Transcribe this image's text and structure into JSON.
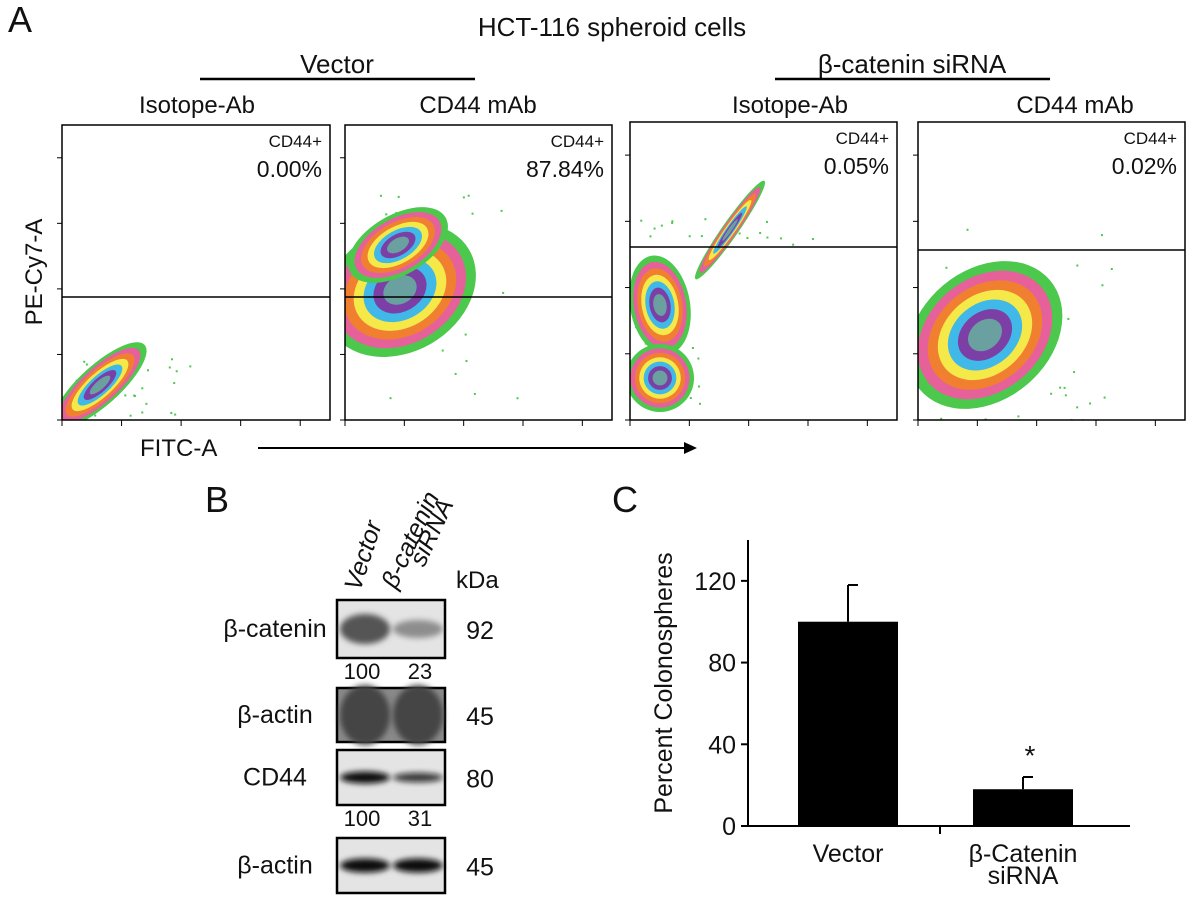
{
  "panel_a": {
    "label": "A",
    "title": "HCT-116 spheroid cells",
    "groups": [
      "Vector",
      "β-catenin siRNA"
    ],
    "plots": [
      {
        "label": "Isotope-Ab",
        "gate_label": "CD44+",
        "percent": "0.00%"
      },
      {
        "label": "CD44 mAb",
        "gate_label": "CD44+",
        "percent": "87.84%"
      },
      {
        "label": "Isotope-Ab",
        "gate_label": "CD44+",
        "percent": "0.05%"
      },
      {
        "label": "CD44 mAb",
        "gate_label": "CD44+",
        "percent": "0.02%"
      }
    ],
    "y_axis_label": "PE-Cy7-A",
    "x_axis_label": "FITC-A"
  },
  "panel_b": {
    "label": "B",
    "lanes": [
      [
        "Vector"
      ],
      [
        "β-catenin",
        "siRNA"
      ]
    ],
    "unit": "kDa",
    "rows": [
      {
        "protein": "β-catenin",
        "kda": 92,
        "quant": [
          100,
          23
        ]
      },
      {
        "protein": "β-actin",
        "kda": 45
      },
      {
        "protein": "CD44",
        "kda": 80,
        "quant": [
          100,
          31
        ]
      },
      {
        "protein": "β-actin",
        "kda": 45
      }
    ]
  },
  "chart_data": {
    "type": "bar",
    "label": "C",
    "ylabel": "Percent Colonospheres",
    "categories": [
      "Vector",
      "β-Catenin siRNA"
    ],
    "values": [
      100,
      18
    ],
    "errors": [
      18,
      6
    ],
    "color": "#000000",
    "ylim": [
      0,
      140
    ],
    "yticks": [
      0,
      40,
      80,
      120
    ],
    "annotation": "*"
  }
}
